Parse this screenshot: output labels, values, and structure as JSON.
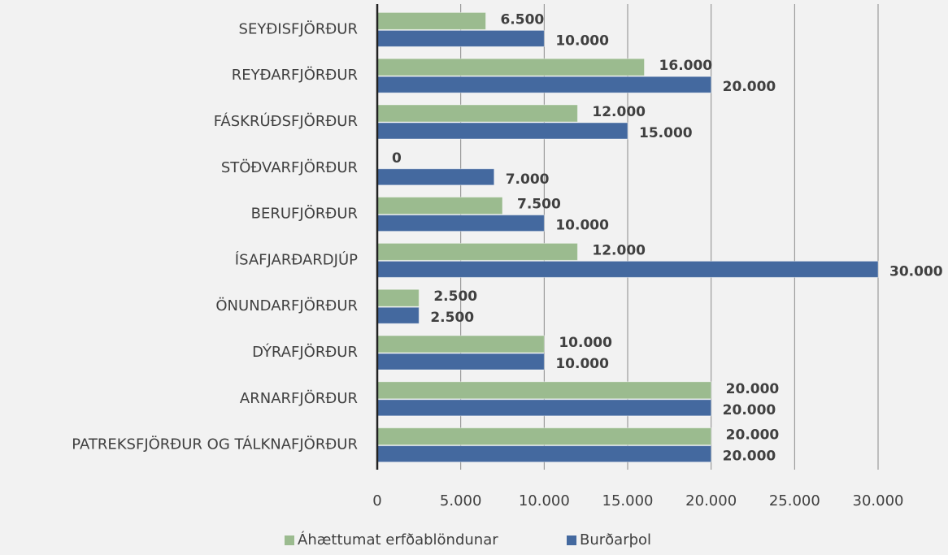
{
  "chart_data": {
    "type": "bar",
    "orientation": "horizontal",
    "categories": [
      "SEYÐISFJÖRÐUR",
      "REYÐARFJÖRÐUR",
      "FÁSKRÚÐSFJÖRÐUR",
      "STÖÐVARFJÖRÐUR",
      "BERUFJÖRÐUR",
      "ÍSAFJARÐARDJÚP",
      "ÖNUNDARFJÖRÐUR",
      "DÝRAFJÖRÐUR",
      "ARNARFJÖRÐUR",
      "PATREKSFJÖRÐUR OG TÁLKNAFJÖRÐUR"
    ],
    "series": [
      {
        "name": "Áhættumat erfðablöndunar",
        "color": "#9bbb8f",
        "values": [
          6500,
          16000,
          12000,
          0,
          7500,
          12000,
          2500,
          10000,
          20000,
          20000
        ],
        "value_labels": [
          "6.500",
          "16.000",
          "12.000",
          "0",
          "7.500",
          "12.000",
          "2.500",
          "10.000",
          "20.000",
          "20.000"
        ]
      },
      {
        "name": "Burðarþol",
        "color": "#44699f",
        "values": [
          10000,
          20000,
          15000,
          7000,
          10000,
          30000,
          2500,
          10000,
          20000,
          20000
        ],
        "value_labels": [
          "10.000",
          "20.000",
          "15.000",
          "7.000",
          "10.000",
          "30.000",
          "2.500",
          "10.000",
          "20.000",
          "20.000"
        ]
      }
    ],
    "xlim": [
      0,
      30000
    ],
    "xticks": [
      0,
      {
        "value": 5000,
        "label": "5.000"
      },
      {
        "value": 10000,
        "label": "10.000"
      },
      {
        "value": 15000,
        "label": "15.000"
      },
      {
        "value": 20000,
        "label": "20.000"
      },
      {
        "value": 25000,
        "label": "25.000"
      },
      {
        "value": 30000,
        "label": "30.000"
      }
    ],
    "grid": true,
    "legend": "bottom"
  }
}
